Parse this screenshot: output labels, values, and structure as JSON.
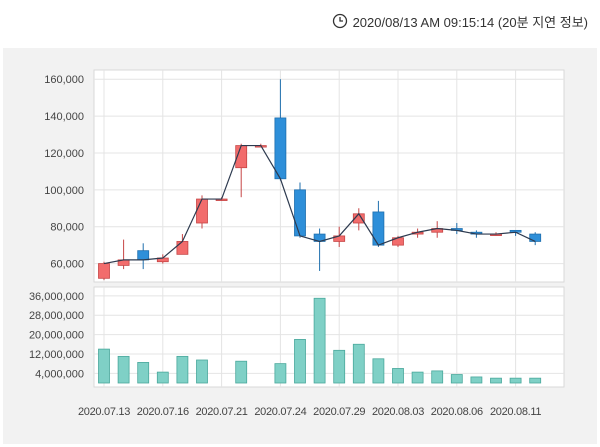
{
  "header": {
    "timestamp": "2020/08/13 AM 09:15:14 (20분 지연 정보)",
    "clock_icon": "clock-icon"
  },
  "colors": {
    "up": "#f26c6c",
    "down": "#2e8fd9",
    "volume": "#7fd0c6",
    "trend_line": "#2d3a4f"
  },
  "chart_data": {
    "type": "candlestick",
    "price_axis": {
      "ylim": [
        50000,
        165000
      ],
      "ticks": [
        60000,
        80000,
        100000,
        120000,
        140000,
        160000
      ],
      "tick_labels": [
        "60,000",
        "80,000",
        "100,000",
        "120,000",
        "140,000",
        "160,000"
      ]
    },
    "volume_axis": {
      "ylim": [
        0,
        38000000
      ],
      "ticks": [
        4000000,
        12000000,
        20000000,
        28000000,
        36000000
      ],
      "tick_labels": [
        "4,000,000",
        "12,000,000",
        "20,000,000",
        "28,000,000",
        "36,000,000"
      ]
    },
    "x_tick_labels": [
      "2020.07.13",
      "2020.07.16",
      "2020.07.21",
      "2020.07.24",
      "2020.07.29",
      "2020.08.03",
      "2020.08.06",
      "2020.08.11"
    ],
    "x_tick_index": [
      0,
      3,
      6,
      9,
      12,
      15,
      18,
      21
    ],
    "candles": [
      {
        "o": 52000,
        "c": 60000,
        "h": 61000,
        "l": 51000,
        "v": 14000000
      },
      {
        "o": 59000,
        "c": 62000,
        "h": 73000,
        "l": 57000,
        "v": 11000000
      },
      {
        "o": 67000,
        "c": 62000,
        "h": 71000,
        "l": 57000,
        "v": 8500000
      },
      {
        "o": 61000,
        "c": 63000,
        "h": 65000,
        "l": 60000,
        "v": 4500000
      },
      {
        "o": 65000,
        "c": 72000,
        "h": 76000,
        "l": 65000,
        "v": 11000000
      },
      {
        "o": 82000,
        "c": 95000,
        "h": 97000,
        "l": 79000,
        "v": 9500000
      },
      {
        "o": 95000,
        "c": 95000,
        "h": 96000,
        "l": 94000,
        "v": 0
      },
      {
        "o": 112000,
        "c": 124000,
        "h": 125000,
        "l": 96000,
        "v": 9000000
      },
      {
        "o": 124000,
        "c": 124000,
        "h": 125000,
        "l": 123000,
        "v": 0
      },
      {
        "o": 139000,
        "c": 106000,
        "h": 160000,
        "l": 105000,
        "v": 8000000
      },
      {
        "o": 100000,
        "c": 75000,
        "h": 104000,
        "l": 74000,
        "v": 18000000
      },
      {
        "o": 76000,
        "c": 72000,
        "h": 79000,
        "l": 56000,
        "v": 35000000
      },
      {
        "o": 72000,
        "c": 75000,
        "h": 80000,
        "l": 69000,
        "v": 13500000
      },
      {
        "o": 82000,
        "c": 87000,
        "h": 90000,
        "l": 78000,
        "v": 16000000
      },
      {
        "o": 88000,
        "c": 70000,
        "h": 94000,
        "l": 69000,
        "v": 10000000
      },
      {
        "o": 70000,
        "c": 74000,
        "h": 75000,
        "l": 69000,
        "v": 6000000
      },
      {
        "o": 76000,
        "c": 77000,
        "h": 79000,
        "l": 74000,
        "v": 4500000
      },
      {
        "o": 77000,
        "c": 79000,
        "h": 83000,
        "l": 74000,
        "v": 5000000
      },
      {
        "o": 79000,
        "c": 78000,
        "h": 82000,
        "l": 76000,
        "v": 3500000
      },
      {
        "o": 77000,
        "c": 76000,
        "h": 78000,
        "l": 74000,
        "v": 2500000
      },
      {
        "o": 76000,
        "c": 76000,
        "h": 77000,
        "l": 75000,
        "v": 2000000
      },
      {
        "o": 78000,
        "c": 77000,
        "h": 78000,
        "l": 75000,
        "v": 2000000
      },
      {
        "o": 76000,
        "c": 72000,
        "h": 77000,
        "l": 70000,
        "v": 2000000
      }
    ]
  }
}
